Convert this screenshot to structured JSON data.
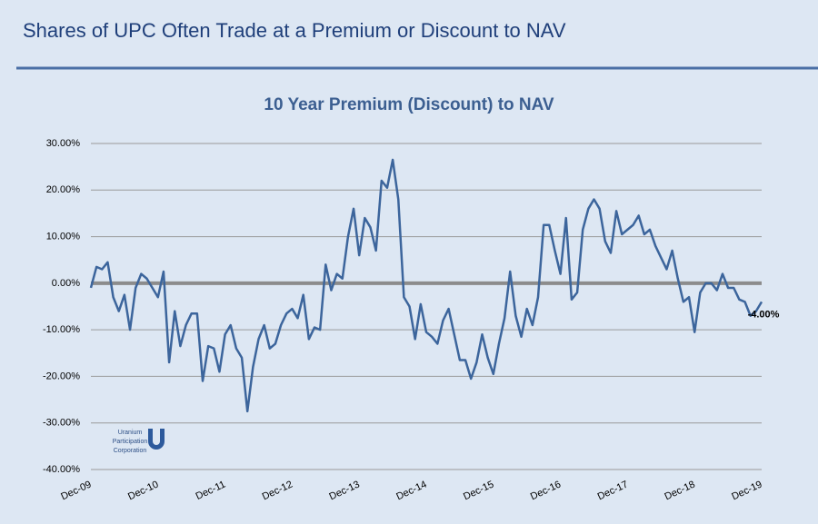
{
  "header": {
    "title": "Shares of UPC Often Trade at a Premium or Discount to NAV"
  },
  "logo": {
    "lines": [
      "Uranium",
      "Participation",
      "Corporation"
    ]
  },
  "chart_data": {
    "type": "line",
    "title": "10 Year Premium (Discount) to NAV",
    "categories": [
      "Dec-09",
      null,
      null,
      null,
      null,
      null,
      null,
      null,
      null,
      null,
      null,
      null,
      "Dec-10",
      null,
      null,
      null,
      null,
      null,
      null,
      null,
      null,
      null,
      null,
      null,
      "Dec-11",
      null,
      null,
      null,
      null,
      null,
      null,
      null,
      null,
      null,
      null,
      null,
      "Dec-12",
      null,
      null,
      null,
      null,
      null,
      null,
      null,
      null,
      null,
      null,
      null,
      "Dec-13",
      null,
      null,
      null,
      null,
      null,
      null,
      null,
      null,
      null,
      null,
      null,
      "Dec-14",
      null,
      null,
      null,
      null,
      null,
      null,
      null,
      null,
      null,
      null,
      null,
      "Dec-15",
      null,
      null,
      null,
      null,
      null,
      null,
      null,
      null,
      null,
      null,
      null,
      "Dec-16",
      null,
      null,
      null,
      null,
      null,
      null,
      null,
      null,
      null,
      null,
      null,
      "Dec-17",
      null,
      null,
      null,
      null,
      null,
      null,
      null,
      null,
      null,
      null,
      null,
      "Dec-18",
      null,
      null,
      null,
      null,
      null,
      null,
      null,
      null,
      null,
      null,
      null,
      "Dec-19"
    ],
    "values": [
      -1,
      3.5,
      3,
      4.5,
      -3,
      -6,
      -2.5,
      -10,
      -1,
      2,
      1,
      -1,
      -3,
      2.5,
      -17,
      -6,
      -13.5,
      -9,
      -6.5,
      -6.5,
      -21,
      -13.5,
      -14,
      -19,
      -11,
      -9,
      -14,
      -16,
      -27.5,
      -18,
      -12,
      -9,
      -14,
      -13,
      -9,
      -6.5,
      -5.5,
      -7.5,
      -2.5,
      -12,
      -9.5,
      -10,
      4,
      -1.5,
      2,
      1,
      10,
      16,
      6,
      14,
      12,
      7,
      22,
      20.5,
      26.5,
      18,
      -3,
      -5,
      -12,
      -4.5,
      -10.5,
      -11.5,
      -13,
      -8,
      -5.5,
      -11,
      -16.5,
      -16.5,
      -20.5,
      -17,
      -11,
      -16,
      -19.5,
      -13,
      -7.5,
      2.5,
      -7,
      -11.5,
      -5.5,
      -9,
      -3,
      12.5,
      12.5,
      7,
      2,
      14,
      -3.5,
      -2,
      11.5,
      16,
      18,
      16,
      9,
      6.5,
      15.5,
      10.5,
      11.5,
      12.5,
      14.5,
      10.5,
      11.5,
      8,
      5.5,
      3,
      7,
      1,
      -4,
      -3,
      -10.5,
      -2,
      0,
      0,
      -1.5,
      2,
      -1,
      -1,
      -3.5,
      -4,
      -7,
      -6,
      -4
    ],
    "value_labels": [
      null,
      null,
      null,
      null,
      null,
      null,
      null,
      null,
      null,
      null,
      null,
      null,
      null,
      null,
      null,
      null,
      null,
      null,
      null,
      null,
      null,
      null,
      null,
      null,
      null,
      null,
      null,
      null,
      null,
      null,
      null,
      null,
      null,
      null,
      null,
      null,
      null,
      null,
      null,
      null,
      null,
      null,
      null,
      null,
      null,
      null,
      null,
      null,
      null,
      null,
      null,
      null,
      null,
      null,
      null,
      null,
      null,
      null,
      null,
      null,
      null,
      null,
      null,
      null,
      null,
      null,
      null,
      null,
      null,
      null,
      null,
      null,
      null,
      null,
      null,
      null,
      null,
      null,
      null,
      null,
      null,
      null,
      null,
      null,
      null,
      null,
      null,
      null,
      null,
      null,
      null,
      null,
      null,
      null,
      null,
      null,
      null,
      null,
      null,
      null,
      null,
      null,
      null,
      null,
      null,
      null,
      null,
      null,
      null,
      null,
      null,
      null,
      null,
      null,
      null,
      null,
      null,
      null,
      null,
      null,
      "-4.00%"
    ],
    "color": "#3c659c",
    "ylim": [
      -40,
      30
    ],
    "yticks": [
      {
        "value": -40,
        "label": "-40.00%"
      },
      {
        "value": -30,
        "label": "-30.00%"
      },
      {
        "value": -20,
        "label": "-20.00%"
      },
      {
        "value": -10,
        "label": "-10.00%"
      },
      {
        "value": 0,
        "label": "0.00%"
      },
      {
        "value": 10,
        "label": "10.00%"
      },
      {
        "value": 20,
        "label": "20.00%"
      },
      {
        "value": 30,
        "label": "30.00%"
      }
    ],
    "grid": true
  }
}
